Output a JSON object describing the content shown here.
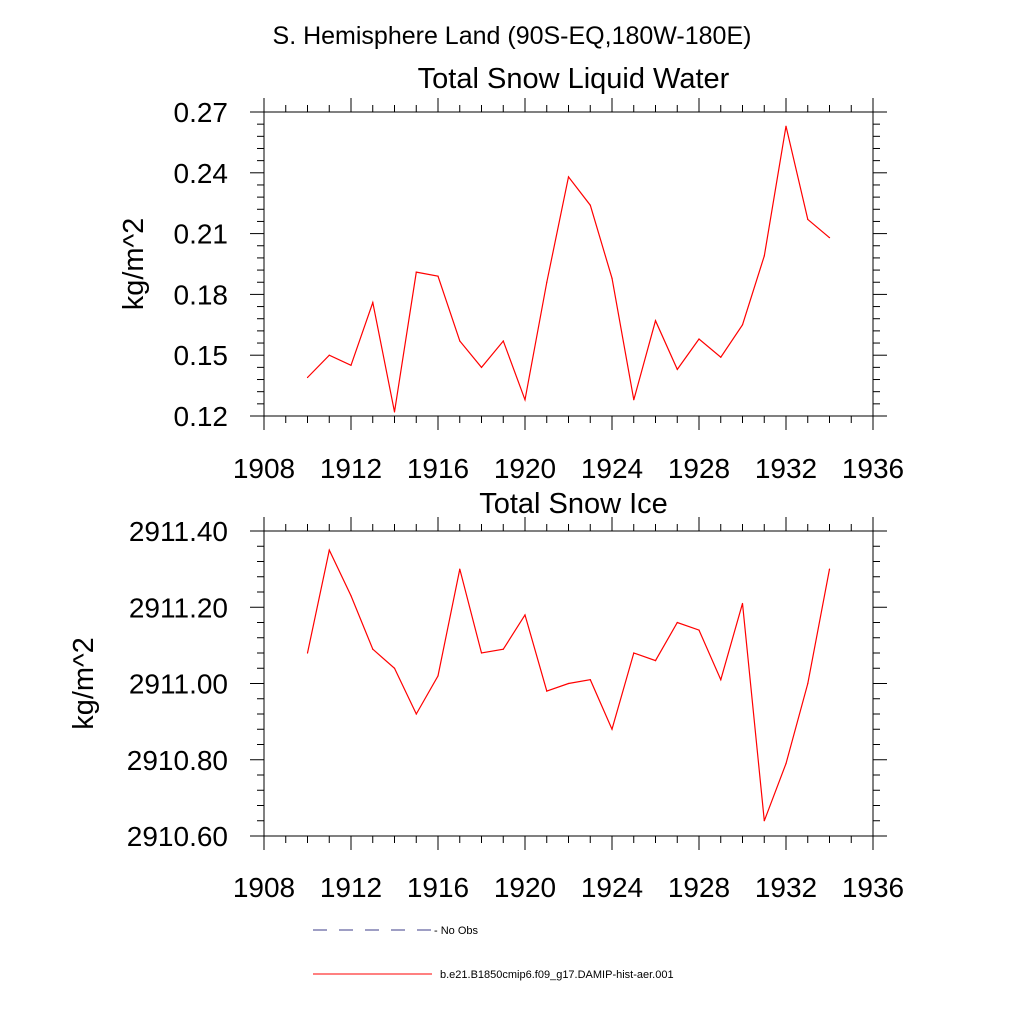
{
  "figure": {
    "suptitle": "S. Hemisphere Land (90S-EQ,180W-180E)"
  },
  "colors": {
    "series": "#ff0000",
    "no_obs": "#3d3d8a",
    "axis": "#000000"
  },
  "legend": {
    "placement": "bottom",
    "items": [
      {
        "label": "- No Obs",
        "style": "dashed",
        "color": "#3d3d8a"
      },
      {
        "label": "b.e21.B1850cmip6.f09_g17.DAMIP-hist-aer.001",
        "style": "solid",
        "color": "#ff0000"
      }
    ]
  },
  "chart_data": [
    {
      "type": "line",
      "title": "Total Snow Liquid Water",
      "xlabel": "",
      "ylabel": "kg/m^2",
      "xlim": [
        1908,
        1936
      ],
      "ylim": [
        0.12,
        0.27
      ],
      "xticks": [
        1908,
        1912,
        1916,
        1920,
        1924,
        1928,
        1932,
        1936
      ],
      "xtick_labels": [
        "1908",
        "1912",
        "1916",
        "1920",
        "1924",
        "1928",
        "1932",
        "1936"
      ],
      "yticks": [
        0.12,
        0.15,
        0.18,
        0.21,
        0.24,
        0.27
      ],
      "ytick_labels": [
        "0.12",
        "0.15",
        "0.18",
        "0.21",
        "0.24",
        "0.27"
      ],
      "grid": false,
      "series": [
        {
          "name": "b.e21.B1850cmip6.f09_g17.DAMIP-hist-aer.001",
          "color": "#ff0000",
          "x": [
            1910,
            1911,
            1912,
            1913,
            1914,
            1915,
            1916,
            1917,
            1918,
            1919,
            1920,
            1921,
            1922,
            1923,
            1924,
            1925,
            1926,
            1927,
            1928,
            1929,
            1930,
            1931,
            1932,
            1933,
            1934
          ],
          "values": [
            0.139,
            0.15,
            0.145,
            0.176,
            0.122,
            0.191,
            0.189,
            0.157,
            0.144,
            0.157,
            0.128,
            0.186,
            0.238,
            0.224,
            0.188,
            0.128,
            0.167,
            0.143,
            0.158,
            0.149,
            0.165,
            0.199,
            0.263,
            0.217,
            0.208
          ]
        }
      ]
    },
    {
      "type": "line",
      "title": "Total Snow Ice",
      "xlabel": "",
      "ylabel": "kg/m^2",
      "xlim": [
        1908,
        1936
      ],
      "ylim": [
        2910.6,
        2911.4
      ],
      "xticks": [
        1908,
        1912,
        1916,
        1920,
        1924,
        1928,
        1932,
        1936
      ],
      "xtick_labels": [
        "1908",
        "1912",
        "1916",
        "1920",
        "1924",
        "1928",
        "1932",
        "1936"
      ],
      "yticks": [
        2910.6,
        2910.8,
        2911.0,
        2911.2,
        2911.4
      ],
      "ytick_labels": [
        "2910.60",
        "2910.80",
        "2911.00",
        "2911.20",
        "2911.40"
      ],
      "grid": false,
      "series": [
        {
          "name": "b.e21.B1850cmip6.f09_g17.DAMIP-hist-aer.001",
          "color": "#ff0000",
          "x": [
            1910,
            1911,
            1912,
            1913,
            1914,
            1915,
            1916,
            1917,
            1918,
            1919,
            1920,
            1921,
            1922,
            1923,
            1924,
            1925,
            1926,
            1927,
            1928,
            1929,
            1930,
            1931,
            1932,
            1933,
            1934
          ],
          "values": [
            2911.08,
            2911.35,
            2911.23,
            2911.09,
            2911.04,
            2910.92,
            2911.02,
            2911.3,
            2911.08,
            2911.09,
            2911.18,
            2910.98,
            2911.0,
            2911.01,
            2910.88,
            2911.08,
            2911.06,
            2911.16,
            2911.14,
            2911.01,
            2911.21,
            2910.64,
            2910.79,
            2911.0,
            2911.3
          ]
        }
      ]
    }
  ]
}
